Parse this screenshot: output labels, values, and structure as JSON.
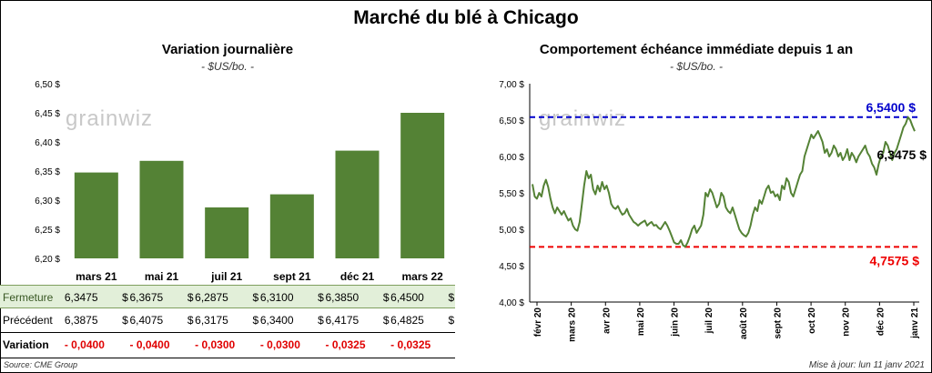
{
  "title": "Marché du blé à Chicago",
  "left_panel": {
    "title": "Variation  journalière",
    "unit": "- $US/bo. -"
  },
  "right_panel": {
    "title": "Comportement  échéance immédiate depuis 1 an",
    "unit": "- $US/bo. -"
  },
  "watermark": "grainwiz",
  "colors": {
    "bar": "#548235",
    "line": "#548235",
    "high": "#0000cc",
    "low": "#ee0000",
    "negative": "#e00000",
    "close_row": "#e2efd9"
  },
  "chart_data": [
    {
      "type": "bar",
      "categories": [
        "mars 21",
        "mai 21",
        "juil 21",
        "sept 21",
        "déc 21",
        "mars 22"
      ],
      "values": [
        6.3475,
        6.3675,
        6.2875,
        6.31,
        6.385,
        6.45
      ],
      "ylim": [
        6.2,
        6.5
      ],
      "yticks": [
        "6,20 $",
        "6,25 $",
        "6,30 $",
        "6,35 $",
        "6,40 $",
        "6,45 $",
        "6,50 $"
      ],
      "grid": false
    },
    {
      "type": "line",
      "ylim": [
        4.0,
        7.0
      ],
      "yticks": [
        "4,00 $",
        "4,50 $",
        "5,00 $",
        "5,50 $",
        "6,00 $",
        "6,50 $",
        "7,00 $"
      ],
      "xticks": [
        "févr 20",
        "mars 20",
        "avr 20",
        "mai 20",
        "juin 20",
        "juil 20",
        "août 20",
        "sept 20",
        "oct 20",
        "nov 20",
        "déc 20",
        "janv 21"
      ],
      "y": [
        5.62,
        5.45,
        5.42,
        5.5,
        5.45,
        5.6,
        5.68,
        5.58,
        5.42,
        5.3,
        5.22,
        5.3,
        5.25,
        5.2,
        5.25,
        5.18,
        5.12,
        5.15,
        5.05,
        5.0,
        4.98,
        5.1,
        5.35,
        5.6,
        5.8,
        5.7,
        5.75,
        5.55,
        5.48,
        5.6,
        5.52,
        5.65,
        5.55,
        5.6,
        5.5,
        5.35,
        5.3,
        5.28,
        5.32,
        5.25,
        5.2,
        5.22,
        5.28,
        5.2,
        5.15,
        5.1,
        5.08,
        5.05,
        5.08,
        5.1,
        5.12,
        5.05,
        5.08,
        5.1,
        5.05,
        5.06,
        5.02,
        5.0,
        5.05,
        5.1,
        5.05,
        4.98,
        4.9,
        4.82,
        4.8,
        4.8,
        4.85,
        4.78,
        4.76,
        4.82,
        4.9,
        5.0,
        5.05,
        4.95,
        5.0,
        5.05,
        5.2,
        5.5,
        5.45,
        5.55,
        5.5,
        5.4,
        5.3,
        5.35,
        5.5,
        5.45,
        5.3,
        5.25,
        5.22,
        5.3,
        5.2,
        5.1,
        5.0,
        4.95,
        4.92,
        4.9,
        4.95,
        5.05,
        5.2,
        5.3,
        5.25,
        5.4,
        5.35,
        5.45,
        5.55,
        5.6,
        5.5,
        5.52,
        5.45,
        5.48,
        5.4,
        5.6,
        5.55,
        5.7,
        5.65,
        5.5,
        5.45,
        5.55,
        5.65,
        5.75,
        5.8,
        6.0,
        6.1,
        6.2,
        6.3,
        6.25,
        6.3,
        6.35,
        6.28,
        6.2,
        6.05,
        6.1,
        6.0,
        6.05,
        6.15,
        6.1,
        6.0,
        6.05,
        5.95,
        6.0,
        6.1,
        5.95,
        6.05,
        6.0,
        5.92,
        6.0,
        6.05,
        6.1,
        6.15,
        6.05,
        6.0,
        5.9,
        5.85,
        5.75,
        5.9,
        6.0,
        6.05,
        6.2,
        6.15,
        6.05,
        5.95,
        6.05,
        6.1,
        6.2,
        6.3,
        6.4,
        6.45,
        6.54,
        6.5,
        6.42,
        6.3475
      ],
      "high": 6.54,
      "high_label": "6,5400 $",
      "low": 4.7575,
      "low_label": "4,7575 $",
      "last_label": "6,3475 $",
      "grid": false
    }
  ],
  "table": {
    "rows": [
      {
        "label": "Fermeture",
        "values": [
          "6,3475",
          "6,3675",
          "6,2875",
          "6,3100",
          "6,3850",
          "6,4500"
        ],
        "currency": "$"
      },
      {
        "label": "Précédent",
        "values": [
          "6,3875",
          "6,4075",
          "6,3175",
          "6,3400",
          "6,4175",
          "6,4825"
        ],
        "currency": "$"
      },
      {
        "label": "Variation",
        "values": [
          "- 0,0400",
          "- 0,0400",
          "- 0,0300",
          "- 0,0300",
          "- 0,0325",
          "- 0,0325"
        ],
        "currency": ""
      }
    ]
  },
  "footer": {
    "source": "Source: CME Group",
    "updated": "Mise à jour: lun 11 janv 2021"
  }
}
